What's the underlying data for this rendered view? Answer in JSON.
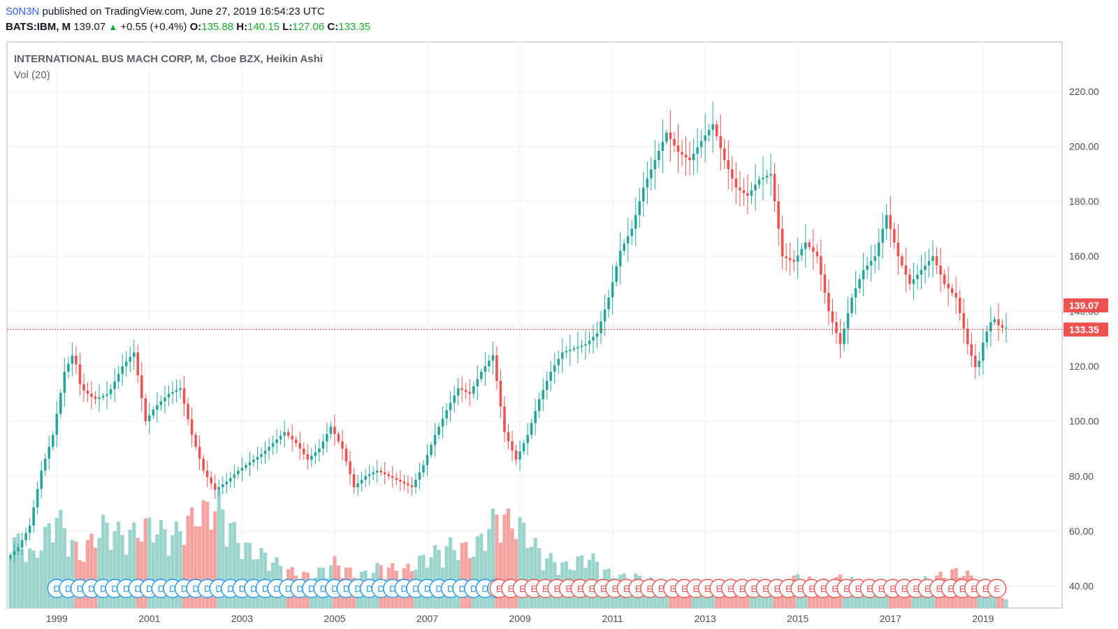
{
  "header": {
    "author": "S0N3N",
    "published_text": "published on TradingView.com, June 27, 2019 16:54:23 UTC",
    "symbol": "BATS:IBM, M",
    "last_price": "139.07",
    "change": "+0.55 (+0.4%)",
    "open_label": "O:",
    "open": "135.88",
    "high_label": "H:",
    "high": "140.15",
    "low_label": "L:",
    "low": "127.06",
    "close_label": "C:",
    "close": "133.35"
  },
  "legend": {
    "title": "INTERNATIONAL BUS MACH CORP, M, Cboe BZX, Heikin Ashi",
    "volume": "Vol (20)"
  },
  "price_labels": {
    "last": "139.07",
    "close": "133.35"
  },
  "colors": {
    "up": "#26a69a",
    "down": "#ef5350",
    "vol_up": "#9ad4cd",
    "vol_down": "#f5a3a1",
    "grid": "#e8eef2",
    "close_line": "#ef5350",
    "dividend_marker": "#2196f3",
    "earnings_marker": "#ef5350"
  },
  "chart_data": {
    "type": "candlestick",
    "chart_style": "Heikin Ashi",
    "interval": "monthly",
    "ylim": [
      32,
      238
    ],
    "y_ticks": [
      "40.00",
      "60.00",
      "80.00",
      "100.00",
      "120.00",
      "140.00",
      "160.00",
      "180.00",
      "200.00",
      "220.00"
    ],
    "x_ticks": [
      "1999",
      "2001",
      "2003",
      "2005",
      "2007",
      "2009",
      "2011",
      "2013",
      "2015",
      "2017",
      "2019"
    ],
    "x_range": [
      1998.0,
      2019.5
    ],
    "anchors": [
      [
        1998.0,
        50
      ],
      [
        1998.25,
        54
      ],
      [
        1998.5,
        62
      ],
      [
        1998.75,
        82
      ],
      [
        1999.0,
        95
      ],
      [
        1999.25,
        118
      ],
      [
        1999.45,
        125
      ],
      [
        1999.6,
        112
      ],
      [
        1999.9,
        108
      ],
      [
        2000.2,
        110
      ],
      [
        2000.5,
        120
      ],
      [
        2000.75,
        125
      ],
      [
        2001.0,
        100
      ],
      [
        2001.2,
        105
      ],
      [
        2001.5,
        110
      ],
      [
        2001.75,
        112
      ],
      [
        2002.0,
        95
      ],
      [
        2002.25,
        82
      ],
      [
        2002.5,
        75
      ],
      [
        2002.75,
        78
      ],
      [
        2003.0,
        82
      ],
      [
        2003.5,
        88
      ],
      [
        2004.0,
        96
      ],
      [
        2004.25,
        92
      ],
      [
        2004.5,
        86
      ],
      [
        2004.75,
        90
      ],
      [
        2005.0,
        98
      ],
      [
        2005.25,
        90
      ],
      [
        2005.5,
        76
      ],
      [
        2005.75,
        80
      ],
      [
        2006.0,
        82
      ],
      [
        2006.5,
        78
      ],
      [
        2006.75,
        76
      ],
      [
        2007.0,
        84
      ],
      [
        2007.25,
        95
      ],
      [
        2007.5,
        104
      ],
      [
        2007.75,
        112
      ],
      [
        2008.0,
        110
      ],
      [
        2008.25,
        118
      ],
      [
        2008.5,
        124
      ],
      [
        2008.75,
        96
      ],
      [
        2009.0,
        86
      ],
      [
        2009.25,
        95
      ],
      [
        2009.5,
        108
      ],
      [
        2009.75,
        118
      ],
      [
        2010.0,
        125
      ],
      [
        2010.5,
        128
      ],
      [
        2010.75,
        132
      ],
      [
        2011.0,
        145
      ],
      [
        2011.25,
        162
      ],
      [
        2011.5,
        170
      ],
      [
        2011.75,
        185
      ],
      [
        2012.0,
        195
      ],
      [
        2012.25,
        205
      ],
      [
        2012.5,
        198
      ],
      [
        2012.75,
        195
      ],
      [
        2013.0,
        202
      ],
      [
        2013.25,
        208
      ],
      [
        2013.5,
        195
      ],
      [
        2013.75,
        185
      ],
      [
        2014.0,
        182
      ],
      [
        2014.25,
        188
      ],
      [
        2014.5,
        190
      ],
      [
        2014.75,
        160
      ],
      [
        2015.0,
        158
      ],
      [
        2015.25,
        165
      ],
      [
        2015.5,
        160
      ],
      [
        2015.75,
        140
      ],
      [
        2016.0,
        128
      ],
      [
        2016.25,
        145
      ],
      [
        2016.5,
        155
      ],
      [
        2016.75,
        160
      ],
      [
        2017.0,
        175
      ],
      [
        2017.25,
        160
      ],
      [
        2017.5,
        150
      ],
      [
        2017.75,
        155
      ],
      [
        2018.0,
        160
      ],
      [
        2018.25,
        150
      ],
      [
        2018.5,
        145
      ],
      [
        2018.75,
        128
      ],
      [
        2018.95,
        118
      ],
      [
        2019.1,
        130
      ],
      [
        2019.3,
        138
      ],
      [
        2019.45,
        134
      ]
    ],
    "volume": {
      "vol_scale_max": 1.0,
      "anchors": [
        [
          1998.0,
          0.35
        ],
        [
          1998.5,
          0.25
        ],
        [
          1999.0,
          0.45
        ],
        [
          1999.5,
          0.25
        ],
        [
          2000.0,
          0.4
        ],
        [
          2000.5,
          0.35
        ],
        [
          2001.0,
          0.4
        ],
        [
          2001.5,
          0.35
        ],
        [
          2002.0,
          0.45
        ],
        [
          2002.5,
          0.5
        ],
        [
          2003.0,
          0.3
        ],
        [
          2003.5,
          0.25
        ],
        [
          2004.0,
          0.18
        ],
        [
          2004.5,
          0.15
        ],
        [
          2005.0,
          0.22
        ],
        [
          2005.5,
          0.15
        ],
        [
          2006.0,
          0.2
        ],
        [
          2006.5,
          0.18
        ],
        [
          2007.0,
          0.25
        ],
        [
          2007.5,
          0.3
        ],
        [
          2008.0,
          0.28
        ],
        [
          2008.5,
          0.45
        ],
        [
          2009.0,
          0.4
        ],
        [
          2009.5,
          0.25
        ],
        [
          2010.0,
          0.2
        ],
        [
          2010.5,
          0.25
        ],
        [
          2011.0,
          0.15
        ],
        [
          2011.5,
          0.15
        ],
        [
          2012.0,
          0.12
        ],
        [
          2012.5,
          0.1
        ],
        [
          2013.0,
          0.08
        ],
        [
          2013.5,
          0.08
        ],
        [
          2014.0,
          0.12
        ],
        [
          2014.5,
          0.1
        ],
        [
          2015.0,
          0.15
        ],
        [
          2015.5,
          0.12
        ],
        [
          2016.0,
          0.15
        ],
        [
          2016.5,
          0.1
        ],
        [
          2017.0,
          0.1
        ],
        [
          2017.5,
          0.12
        ],
        [
          2018.0,
          0.15
        ],
        [
          2018.5,
          0.18
        ],
        [
          2019.0,
          0.12
        ],
        [
          2019.45,
          0.05
        ]
      ]
    },
    "events": {
      "dividend_range": [
        1999.0,
        2008.55
      ],
      "earnings_range": [
        2008.55,
        2019.45
      ],
      "dividend_glyph": "D",
      "earnings_glyph": "E"
    }
  }
}
